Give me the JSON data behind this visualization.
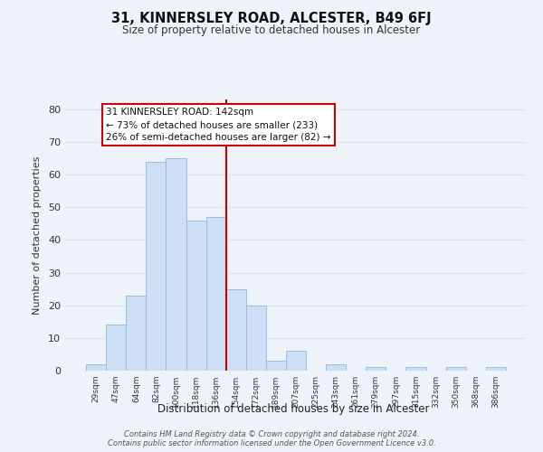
{
  "title": "31, KINNERSLEY ROAD, ALCESTER, B49 6FJ",
  "subtitle": "Size of property relative to detached houses in Alcester",
  "xlabel": "Distribution of detached houses by size in Alcester",
  "ylabel": "Number of detached properties",
  "bar_labels": [
    "29sqm",
    "47sqm",
    "64sqm",
    "82sqm",
    "100sqm",
    "118sqm",
    "136sqm",
    "154sqm",
    "172sqm",
    "189sqm",
    "207sqm",
    "225sqm",
    "243sqm",
    "261sqm",
    "279sqm",
    "297sqm",
    "315sqm",
    "332sqm",
    "350sqm",
    "368sqm",
    "386sqm"
  ],
  "bar_values": [
    2,
    14,
    23,
    64,
    65,
    46,
    47,
    25,
    20,
    3,
    6,
    0,
    2,
    0,
    1,
    0,
    1,
    0,
    1,
    0,
    1
  ],
  "bar_color": "#ccdff5",
  "bar_edge_color": "#8fb8d8",
  "vline_color": "#cc0000",
  "vline_pos": 6.5,
  "ylim": [
    0,
    83
  ],
  "yticks": [
    0,
    10,
    20,
    30,
    40,
    50,
    60,
    70,
    80
  ],
  "annotation_line1": "31 KINNERSLEY ROAD: 142sqm",
  "annotation_line2": "← 73% of detached houses are smaller (233)",
  "annotation_line3": "26% of semi-detached houses are larger (82) →",
  "footer_line1": "Contains HM Land Registry data © Crown copyright and database right 2024.",
  "footer_line2": "Contains public sector information licensed under the Open Government Licence v3.0.",
  "background_color": "#eef2f9",
  "grid_color": "#dde5f0",
  "plot_bg_color": "#eef2f9"
}
